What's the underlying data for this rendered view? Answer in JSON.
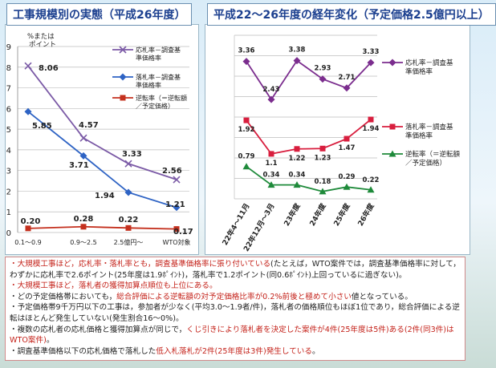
{
  "chart_data": [
    {
      "type": "line",
      "title": "工事規模別の実態（平成26年度）",
      "ylabel": "%または\nポイント",
      "categories": [
        "0.1～0.9",
        "0.9～2.5",
        "2.5億円～",
        "WTO対象"
      ],
      "ylim": [
        0,
        9
      ],
      "yticks": [
        "0",
        "1",
        "2",
        "3",
        "4",
        "5",
        "6",
        "7",
        "8",
        "9"
      ],
      "grid": true,
      "legend": "top-right",
      "series": [
        {
          "name": "応札率－調査基準価格率",
          "values": [
            8.06,
            4.57,
            3.33,
            2.56
          ],
          "labels": [
            "8.06",
            "4.57",
            "3.33",
            "2.56"
          ],
          "color": "#7b5aa6",
          "marker": "x"
        },
        {
          "name": "落札率－調査基準価格率",
          "values": [
            5.85,
            3.71,
            1.94,
            1.21
          ],
          "labels": [
            "5.85",
            "3.71",
            "1.94",
            "1.21"
          ],
          "color": "#2e63c4",
          "marker": "diamond"
        },
        {
          "name": "逆転率（＝逆転額／予定価格）",
          "values": [
            0.2,
            0.28,
            0.22,
            0.17
          ],
          "labels": [
            "0.20",
            "0.28",
            "0.22",
            "0.17"
          ],
          "color": "#c4301e",
          "marker": "square"
        }
      ]
    },
    {
      "type": "line",
      "title": "平成22～26年度の経年変化（予定価格2.5億円以上）",
      "categories": [
        "22年4～11月",
        "22年12月～3月",
        "23年度",
        "24年度",
        "25年度",
        "26年度"
      ],
      "ylim": [
        0,
        4
      ],
      "grid": true,
      "legend": "right",
      "series": [
        {
          "name": "応札率－調査基準価格率",
          "values": [
            3.36,
            2.43,
            3.38,
            2.93,
            2.71,
            3.33
          ],
          "labels": [
            "3.36",
            "2.43",
            "3.38",
            "2.93",
            "2.71",
            "3.33"
          ],
          "color": "#7b2d8e",
          "marker": "diamond"
        },
        {
          "name": "落札率－調査基準価格率",
          "values": [
            1.92,
            1.1,
            1.22,
            1.23,
            1.47,
            1.94
          ],
          "labels": [
            "1.92",
            "1.1",
            "1.22",
            "1.23",
            "1.47",
            "1.94"
          ],
          "color": "#d81e3e",
          "marker": "square"
        },
        {
          "name": "逆転率（＝逆転額／予定価格）",
          "values": [
            0.79,
            0.34,
            0.34,
            0.18,
            0.29,
            0.22
          ],
          "labels": [
            "0.79",
            "0.34",
            "0.34",
            "0.18",
            "0.29",
            "0.22"
          ],
          "color": "#1e8a3a",
          "marker": "triangle"
        }
      ]
    }
  ],
  "notes": [
    {
      "parts": [
        {
          "t": "・大規模工事ほど，応札率・落札率とも，調査基準価格率に張り付いている",
          "red": true
        },
        {
          "t": "(たとえば，WTO案件では，調査基準価格率に対して，わずかに応札率で2.6ポイント(25年度は1.9ﾎﾟｲﾝﾄ)，落札率で1.2ポイント(同0.6ﾎﾟｲﾝﾄ)上回っているに過ぎない)。",
          "red": false
        }
      ]
    },
    {
      "parts": [
        {
          "t": "・大規模工事ほど，落札者の獲得加算点順位も上位にある。",
          "red": true
        }
      ]
    },
    {
      "parts": [
        {
          "t": "・どの予定価格帯においても，",
          "red": false
        },
        {
          "t": "総合評価による逆転額の対予定価格比率が0.2%前後と極めて小さい",
          "red": true
        },
        {
          "t": "値となっている。",
          "red": false
        }
      ]
    },
    {
      "parts": [
        {
          "t": "・予定価格帯9千万円以下の工事は，参加者が少なく(平均3.0～1.9者/件)，落札者の価格順位もほぼ1位であり，総合評価による逆転はほとんど発生していない(発生割合16～0%)。",
          "red": false
        }
      ]
    },
    {
      "parts": [
        {
          "t": "・複数の応札者の応札価格と獲得加算点が同じで，",
          "red": false
        },
        {
          "t": "くじ引きにより落札者を決定した案件が4件(25年度は5件)ある(2件(同3件)はWTO案件)",
          "red": true
        },
        {
          "t": "。",
          "red": false
        }
      ]
    },
    {
      "parts": [
        {
          "t": "・調査基準価格以下の応札価格で落札した",
          "red": false
        },
        {
          "t": "低入札落札が2件(25年度は3件)発生している",
          "red": true
        },
        {
          "t": "。",
          "red": false
        }
      ]
    }
  ]
}
